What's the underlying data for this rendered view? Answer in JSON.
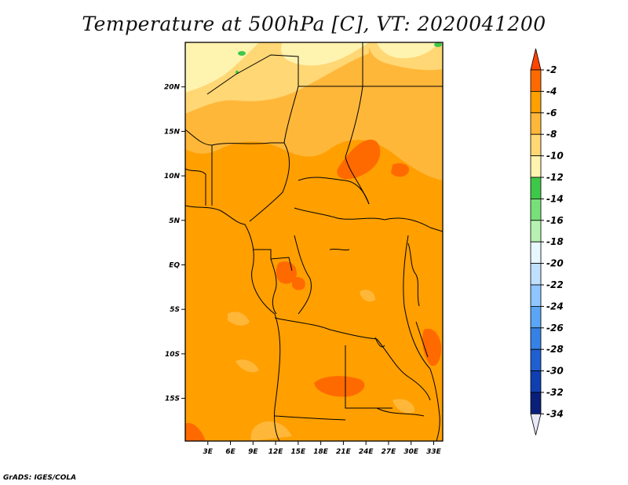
{
  "title": "Temperature at 500hPa [C], VT: 2020041200",
  "footer": "GrADS: IGES/COLA",
  "map": {
    "lon_ticks": [
      "3E",
      "6E",
      "9E",
      "12E",
      "15E",
      "18E",
      "21E",
      "24E",
      "27E",
      "30E",
      "33E"
    ],
    "lat_ticks": [
      "20N",
      "15N",
      "10N",
      "5N",
      "EQ",
      "5S",
      "10S",
      "15S"
    ]
  },
  "colorbar": {
    "labels": [
      "-2",
      "-4",
      "-6",
      "-8",
      "-10",
      "-12",
      "-14",
      "-16",
      "-18",
      "-20",
      "-22",
      "-24",
      "-26",
      "-28",
      "-30",
      "-32",
      "-34"
    ],
    "colors": [
      "#ff4500",
      "#ff6a00",
      "#ff9f00",
      "#ffb73a",
      "#ffd774",
      "#fff3b0",
      "#3dc84a",
      "#78e07a",
      "#b7f2b0",
      "#e6f7ff",
      "#bfe0ff",
      "#8fc6ff",
      "#5aa5f5",
      "#3681e6",
      "#1f5fd1",
      "#0f3fb0",
      "#0a1f7a"
    ]
  },
  "colors": {
    "base": "#ff9f00",
    "warm": "#ff6a00",
    "cool": "#ffb73a",
    "cooler": "#ffd774",
    "coolest": "#fff3b0",
    "green": "#3dc84a"
  }
}
